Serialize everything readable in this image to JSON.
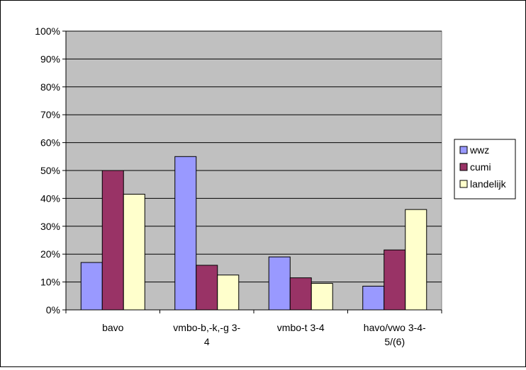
{
  "chart_data": {
    "type": "bar",
    "title": "",
    "xlabel": "",
    "ylabel": "",
    "ylim": [
      0,
      100
    ],
    "y_unit": "%",
    "y_ticks": [
      "0%",
      "10%",
      "20%",
      "30%",
      "40%",
      "50%",
      "60%",
      "70%",
      "80%",
      "90%",
      "100%"
    ],
    "grid": true,
    "legend_position": "right",
    "plot_background": "#c0c0c0",
    "categories": [
      [
        "bavo"
      ],
      [
        "vmbo-b,-k,-g 3-",
        "4"
      ],
      [
        "vmbo-t 3-4"
      ],
      [
        "havo/vwo 3-4-",
        "5/(6)"
      ]
    ],
    "series": [
      {
        "name": "wwz",
        "color": "#9999ff",
        "values": [
          17,
          55,
          19,
          8.5
        ]
      },
      {
        "name": "cumi",
        "color": "#993366",
        "values": [
          50,
          16,
          11.5,
          21.5
        ]
      },
      {
        "name": "landelijk",
        "color": "#ffffcc",
        "values": [
          41.5,
          12.5,
          9.5,
          36
        ]
      }
    ]
  }
}
